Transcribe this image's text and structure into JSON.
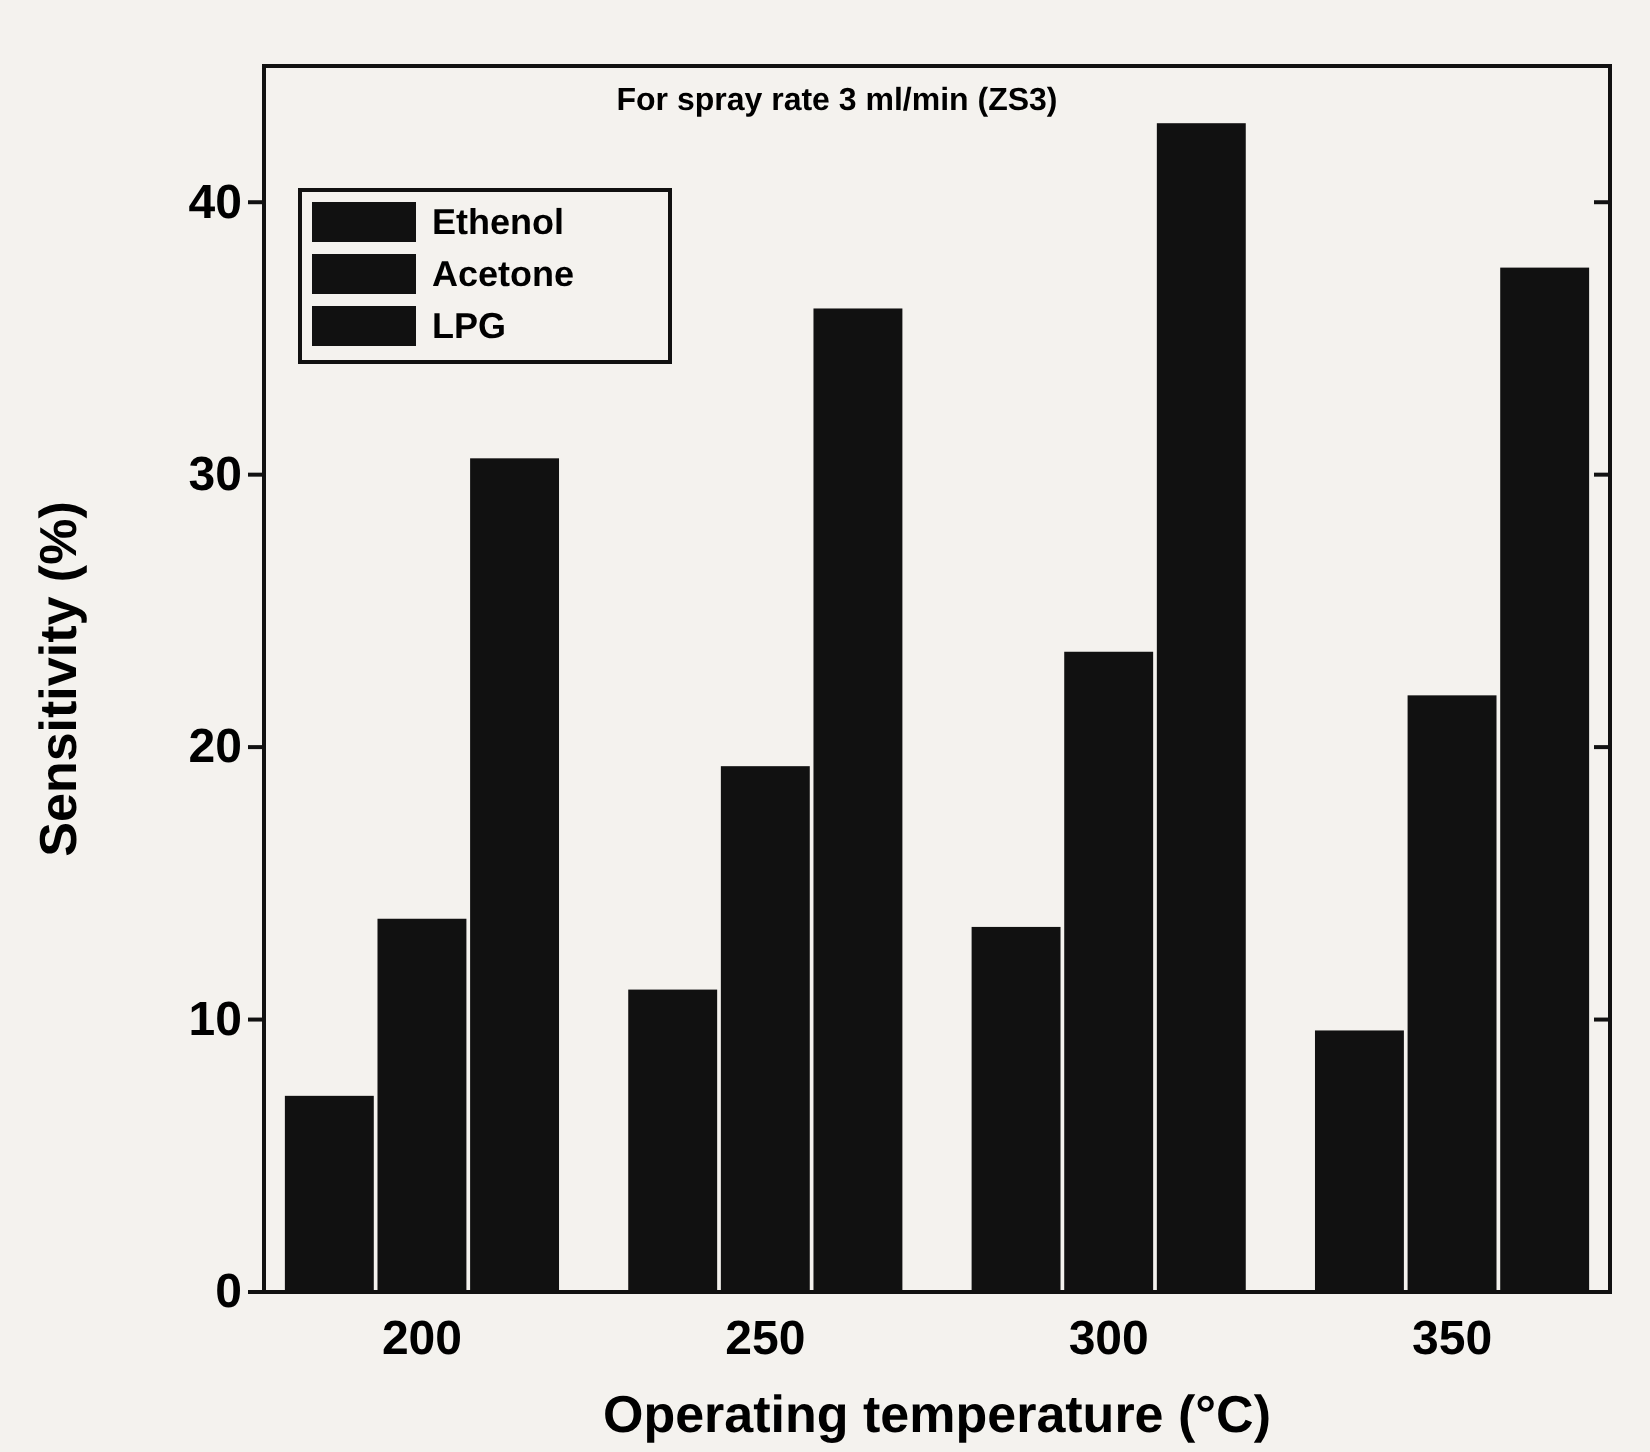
{
  "chart_data": {
    "type": "bar",
    "title": "For spray rate 3 ml/min (ZS3)",
    "xlabel": "Operating temperature (°C)",
    "ylabel": "Sensitivity (%)",
    "categories": [
      "200",
      "250",
      "300",
      "350"
    ],
    "series": [
      {
        "name": "Ethenol",
        "color": "#111111",
        "values": [
          7.2,
          11.1,
          13.4,
          9.6
        ]
      },
      {
        "name": "Acetone",
        "color": "#111111",
        "values": [
          13.7,
          19.3,
          23.5,
          21.9
        ]
      },
      {
        "name": "LPG",
        "color": "#111111",
        "values": [
          30.6,
          36.1,
          42.9,
          37.6
        ]
      }
    ],
    "ylim": [
      0,
      45
    ],
    "yticks": [
      0,
      10,
      20,
      30,
      40
    ],
    "grid": false,
    "legend": "top left"
  }
}
